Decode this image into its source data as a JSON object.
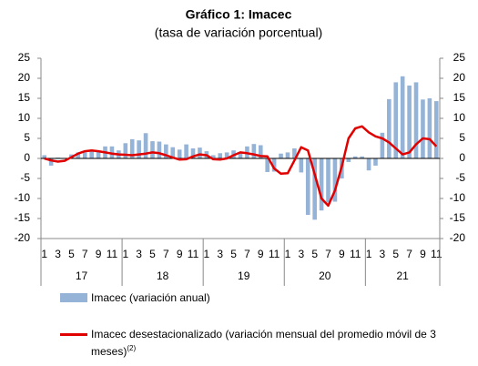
{
  "chart_data": {
    "type": "bar-line",
    "title": "Gráfico 1: Imacec",
    "subtitle": "(tasa de variación porcentual)",
    "categories": [
      "1",
      null,
      "3",
      null,
      "5",
      null,
      "7",
      null,
      "9",
      null,
      "11",
      null,
      "1",
      null,
      "3",
      null,
      "5",
      null,
      "7",
      null,
      "9",
      null,
      "11",
      null,
      "1",
      null,
      "3",
      null,
      "5",
      null,
      "7",
      null,
      "9",
      null,
      "11",
      null,
      "1",
      null,
      "3",
      null,
      "5",
      null,
      "7",
      null,
      "9",
      null,
      "11",
      null,
      "1",
      null,
      "3",
      null,
      "5",
      null,
      "7",
      null,
      "9",
      null,
      "11"
    ],
    "year_labels": [
      "17",
      "18",
      "19",
      "20",
      "21"
    ],
    "series": [
      {
        "name": "Imacec (variación anual)",
        "type": "bar",
        "color": "#95b3d7",
        "values": [
          0.8,
          -1.8,
          0.2,
          0.1,
          1.0,
          1.5,
          1.5,
          2.0,
          1.6,
          3.0,
          3.0,
          2.0,
          3.8,
          4.8,
          4.5,
          6.3,
          4.3,
          4.2,
          3.5,
          2.8,
          2.2,
          3.5,
          2.5,
          2.7,
          1.8,
          0.8,
          1.3,
          1.5,
          2.0,
          1.5,
          3.0,
          3.6,
          3.3,
          -3.4,
          -3.3,
          1.2,
          1.5,
          2.5,
          -3.5,
          -14.1,
          -15.3,
          -13.0,
          -11.0,
          -10.8,
          -5.0,
          -0.9,
          0.5,
          0.5,
          -3.0,
          -1.8,
          6.4,
          14.8,
          19.0,
          20.5,
          18.2,
          19.0,
          14.7,
          15.0,
          14.3
        ]
      },
      {
        "name": "Imacec desestacionalizado (variación mensual del promedio móvil de 3 meses)",
        "name_note": "(2)",
        "type": "line",
        "axis": "y2",
        "color": "#e00000",
        "values": [
          0.0,
          -0.5,
          -0.8,
          -0.6,
          0.3,
          1.2,
          1.8,
          2.0,
          1.8,
          1.5,
          1.2,
          1.0,
          0.9,
          0.8,
          1.0,
          1.2,
          1.5,
          1.3,
          0.8,
          0.2,
          -0.3,
          -0.2,
          0.5,
          1.0,
          0.8,
          -0.2,
          -0.3,
          0.0,
          0.8,
          1.5,
          1.3,
          1.0,
          0.6,
          0.5,
          -2.5,
          -3.8,
          -3.7,
          -0.5,
          2.8,
          2.0,
          -4.0,
          -10.0,
          -11.8,
          -8.0,
          -2.0,
          5.0,
          7.5,
          8.0,
          6.5,
          5.5,
          5.0,
          4.0,
          2.5,
          1.0,
          1.5,
          3.5,
          5.0,
          4.8,
          3.0
        ]
      }
    ],
    "ylim": [
      -20,
      25
    ],
    "yticks": [
      -20,
      -15,
      -10,
      -5,
      0,
      5,
      10,
      15,
      20,
      25
    ],
    "y2lim": [
      -20,
      25
    ],
    "y2ticks": [
      -20,
      -15,
      -10,
      -5,
      0,
      5,
      10,
      15,
      20,
      25
    ],
    "grid": false
  }
}
